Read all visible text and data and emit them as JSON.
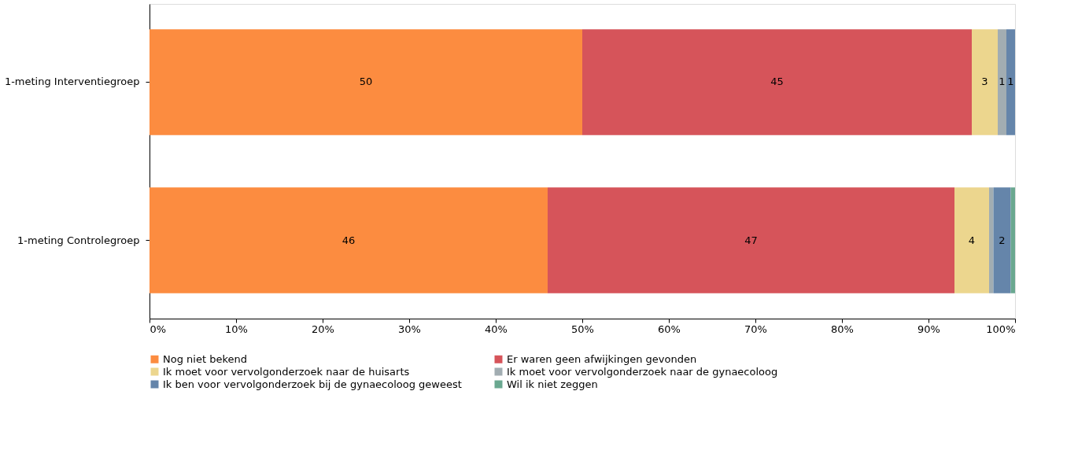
{
  "chart_data": {
    "type": "bar",
    "orientation": "horizontal",
    "stacked": true,
    "categories": [
      "1-meting Interventiegroep",
      "1-meting Controlegroep"
    ],
    "series": [
      {
        "name": "Nog niet bekend",
        "color": "#fc8c40",
        "values": [
          50,
          46
        ],
        "value_labels": [
          "50",
          "46"
        ]
      },
      {
        "name": "Er waren geen afwijkingen gevonden",
        "color": "#d6545a",
        "values": [
          45,
          47
        ],
        "value_labels": [
          "45",
          "47"
        ]
      },
      {
        "name": "Ik moet voor vervolgonderzoek naar de huisarts",
        "color": "#ecd68e",
        "values": [
          3,
          4
        ],
        "value_labels": [
          "3",
          "4"
        ]
      },
      {
        "name": "Ik moet voor vervolgonderzoek naar de gynaecoloog",
        "color": "#a2adb2",
        "values": [
          1,
          0.5
        ],
        "value_labels": [
          "1",
          null
        ]
      },
      {
        "name": "Ik ben voor vervolgonderzoek bij de gynaecoloog geweest",
        "color": "#6585aa",
        "values": [
          1,
          2
        ],
        "value_labels": [
          "1",
          "2"
        ]
      },
      {
        "name": "Wil ik niet zeggen",
        "color": "#6aa890",
        "values": [
          0,
          0.5
        ],
        "value_labels": [
          null,
          null
        ]
      }
    ],
    "xlim": [
      0,
      100
    ],
    "xticks": [
      {
        "value": 0,
        "label": "0%"
      },
      {
        "value": 10,
        "label": "10%"
      },
      {
        "value": 20,
        "label": "20%"
      },
      {
        "value": 30,
        "label": "30%"
      },
      {
        "value": 40,
        "label": "40%"
      },
      {
        "value": 50,
        "label": "50%"
      },
      {
        "value": 60,
        "label": "60%"
      },
      {
        "value": 70,
        "label": "70%"
      },
      {
        "value": 80,
        "label": "80%"
      },
      {
        "value": 90,
        "label": "90%"
      },
      {
        "value": 100,
        "label": "100%"
      }
    ],
    "grid": false,
    "legend": "bottom"
  }
}
